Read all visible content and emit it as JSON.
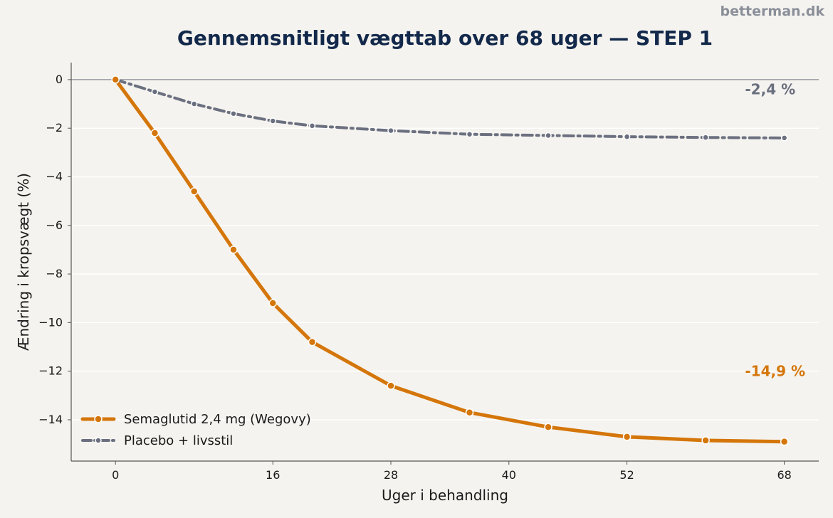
{
  "brand": "betterman.dk",
  "colors": {
    "background": "#f5f3ef",
    "semaglutide": "#d4760a",
    "placebo": "#6b7080",
    "title": "#13294b",
    "grid": "#ffffff",
    "axis": "#555555"
  },
  "chart_data": {
    "type": "line",
    "title": "Gennemsnitligt vægttab over 68 uger — STEP 1",
    "xlabel": "Uger i behandling",
    "ylabel": "Ændring i kropsvægt (%)",
    "xlim": [
      -4.5,
      71.5
    ],
    "ylim": [
      -15.7,
      0.7
    ],
    "x_ticks": [
      0,
      16,
      28,
      40,
      52,
      68
    ],
    "y_ticks": [
      0,
      -2,
      -4,
      -6,
      -8,
      -10,
      -12,
      -14
    ],
    "y_tick_labels": [
      "0",
      "−2",
      "−4",
      "−6",
      "−8",
      "−10",
      "−12",
      "−14"
    ],
    "grid": true,
    "legend_position": "lower-left",
    "series": [
      {
        "name": "Semaglutid 2,4 mg (Wegovy)",
        "style": "solid",
        "x": [
          0,
          4,
          8,
          12,
          16,
          20,
          28,
          36,
          44,
          52,
          60,
          68
        ],
        "y": [
          0,
          -2.2,
          -4.6,
          -7.0,
          -9.2,
          -10.8,
          -12.6,
          -13.7,
          -14.3,
          -14.7,
          -14.85,
          -14.9
        ]
      },
      {
        "name": "Placebo + livsstil",
        "style": "dashdot",
        "x": [
          0,
          4,
          8,
          12,
          16,
          20,
          28,
          36,
          44,
          52,
          60,
          68
        ],
        "y": [
          0,
          -0.5,
          -1.0,
          -1.4,
          -1.7,
          -1.9,
          -2.1,
          -2.25,
          -2.3,
          -2.35,
          -2.38,
          -2.4
        ]
      }
    ],
    "annotations": [
      {
        "text": "-2,4 %",
        "x": 64,
        "y": -0.4,
        "series": 1
      },
      {
        "text": "-14,9 %",
        "x": 64,
        "y": -12.0,
        "series": 0
      }
    ]
  }
}
